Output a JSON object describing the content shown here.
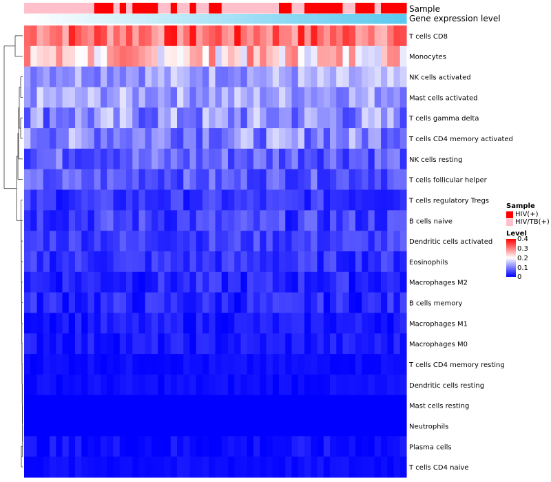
{
  "chart_data": {
    "type": "heatmap",
    "top_annotation_labels": [
      "Sample",
      "Gene expression level"
    ],
    "sample_colors": {
      "HIV(+)": "#ff0000",
      "HIV/TB(+)": "#ffc0cb"
    },
    "samples": [
      "HIV/TB(+)",
      "HIV/TB(+)",
      "HIV/TB(+)",
      "HIV/TB(+)",
      "HIV/TB(+)",
      "HIV/TB(+)",
      "HIV/TB(+)",
      "HIV/TB(+)",
      "HIV/TB(+)",
      "HIV/TB(+)",
      "HIV/TB(+)",
      "HIV(+)",
      "HIV(+)",
      "HIV(+)",
      "HIV/TB(+)",
      "HIV(+)",
      "HIV/TB(+)",
      "HIV(+)",
      "HIV(+)",
      "HIV(+)",
      "HIV(+)",
      "HIV/TB(+)",
      "HIV/TB(+)",
      "HIV(+)",
      "HIV/TB(+)",
      "HIV/TB(+)",
      "HIV(+)",
      "HIV/TB(+)",
      "HIV/TB(+)",
      "HIV(+)",
      "HIV(+)",
      "HIV/TB(+)",
      "HIV/TB(+)",
      "HIV/TB(+)",
      "HIV/TB(+)",
      "HIV/TB(+)",
      "HIV/TB(+)",
      "HIV/TB(+)",
      "HIV/TB(+)",
      "HIV/TB(+)",
      "HIV(+)",
      "HIV(+)",
      "HIV/TB(+)",
      "HIV/TB(+)",
      "HIV(+)",
      "HIV(+)",
      "HIV(+)",
      "HIV(+)",
      "HIV(+)",
      "HIV(+)",
      "HIV/TB(+)",
      "HIV/TB(+)",
      "HIV(+)",
      "HIV(+)",
      "HIV(+)",
      "HIV/TB(+)",
      "HIV(+)",
      "HIV(+)",
      "HIV(+)",
      "HIV(+)"
    ],
    "expression_gradient": {
      "low": "#ffffff",
      "high": "#5bc8ef"
    },
    "row_labels": [
      "T cells CD8",
      "Monocytes",
      "NK cells activated",
      "Mast cells activated",
      "T cells gamma delta",
      "T cells CD4 memory activated",
      "NK cells resting",
      "T cells follicular helper",
      "T cells regulatory  Tregs",
      "B cells naive",
      "Dendritic cells activated",
      "Eosinophils",
      "Macrophages M2",
      "B cells memory",
      "Macrophages M1",
      "Macrophages M0",
      "T cells CD4 memory resting",
      "Dendritic cells resting",
      "Mast cells resting",
      "Neutrophils",
      "Plasma cells",
      "T cells CD4 naive"
    ],
    "row_means": [
      0.32,
      0.24,
      0.13,
      0.13,
      0.11,
      0.11,
      0.08,
      0.07,
      0.04,
      0.05,
      0.05,
      0.04,
      0.03,
      0.03,
      0.02,
      0.02,
      0.01,
      0.01,
      0.0,
      0.0,
      0.01,
      0.01
    ],
    "row_spread": [
      0.07,
      0.08,
      0.05,
      0.05,
      0.07,
      0.06,
      0.05,
      0.04,
      0.03,
      0.04,
      0.03,
      0.03,
      0.03,
      0.03,
      0.02,
      0.02,
      0.01,
      0.01,
      0.0,
      0.0,
      0.02,
      0.01
    ],
    "color_scale": {
      "min": 0,
      "mid": 0.2,
      "max": 0.4,
      "low": "#0000ff",
      "midColor": "#ffffff",
      "high": "#ff0000"
    },
    "legend": {
      "sample_title": "Sample",
      "sample_entries": [
        {
          "label": "HIV(+)",
          "color": "#ff0000"
        },
        {
          "label": "HIV/TB(+)",
          "color": "#ffc0cb"
        }
      ],
      "level_title": "Level",
      "level_ticks": [
        "0.4",
        "0.3",
        "0.2",
        "0.1",
        "0"
      ]
    }
  }
}
